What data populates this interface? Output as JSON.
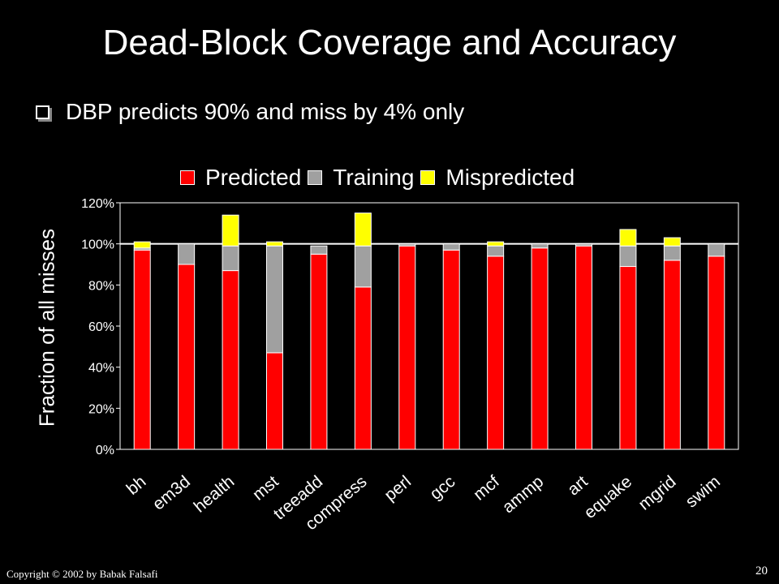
{
  "slide": {
    "title": "Dead-Block Coverage and Accuracy",
    "bullet": "DBP predicts 90% and miss by 4% only",
    "footer": "Copyright © 2002  by Babak Falsafi",
    "page_number": "20"
  },
  "chart_data": {
    "type": "bar",
    "stacked": true,
    "ylabel": "Fraction of all misses",
    "xlabel": "",
    "ylim": [
      0,
      120
    ],
    "yticks": [
      "0%",
      "20%",
      "40%",
      "60%",
      "80%",
      "100%",
      "120%"
    ],
    "grid": "single line at 100%",
    "legend_position": "top",
    "categories": [
      "bh",
      "em3d",
      "health",
      "mst",
      "treeadd",
      "compress",
      "perl",
      "gcc",
      "mcf",
      "ammp",
      "art",
      "equake",
      "mgrid",
      "swim"
    ],
    "series": [
      {
        "name": "Predicted",
        "color": "#ff0000",
        "values": [
          97,
          90,
          87,
          47,
          95,
          79,
          99,
          97,
          94,
          98,
          99,
          89,
          92,
          94
        ]
      },
      {
        "name": "Training",
        "color": "#a0a0a0",
        "values": [
          1,
          10,
          12,
          52,
          4,
          20,
          1,
          3,
          5,
          2,
          1,
          10,
          7,
          6
        ]
      },
      {
        "name": "Mispredicted",
        "color": "#ffff00",
        "values": [
          3,
          0,
          15,
          2,
          0,
          16,
          0,
          0,
          2,
          0,
          0,
          8,
          4,
          0
        ]
      }
    ]
  }
}
